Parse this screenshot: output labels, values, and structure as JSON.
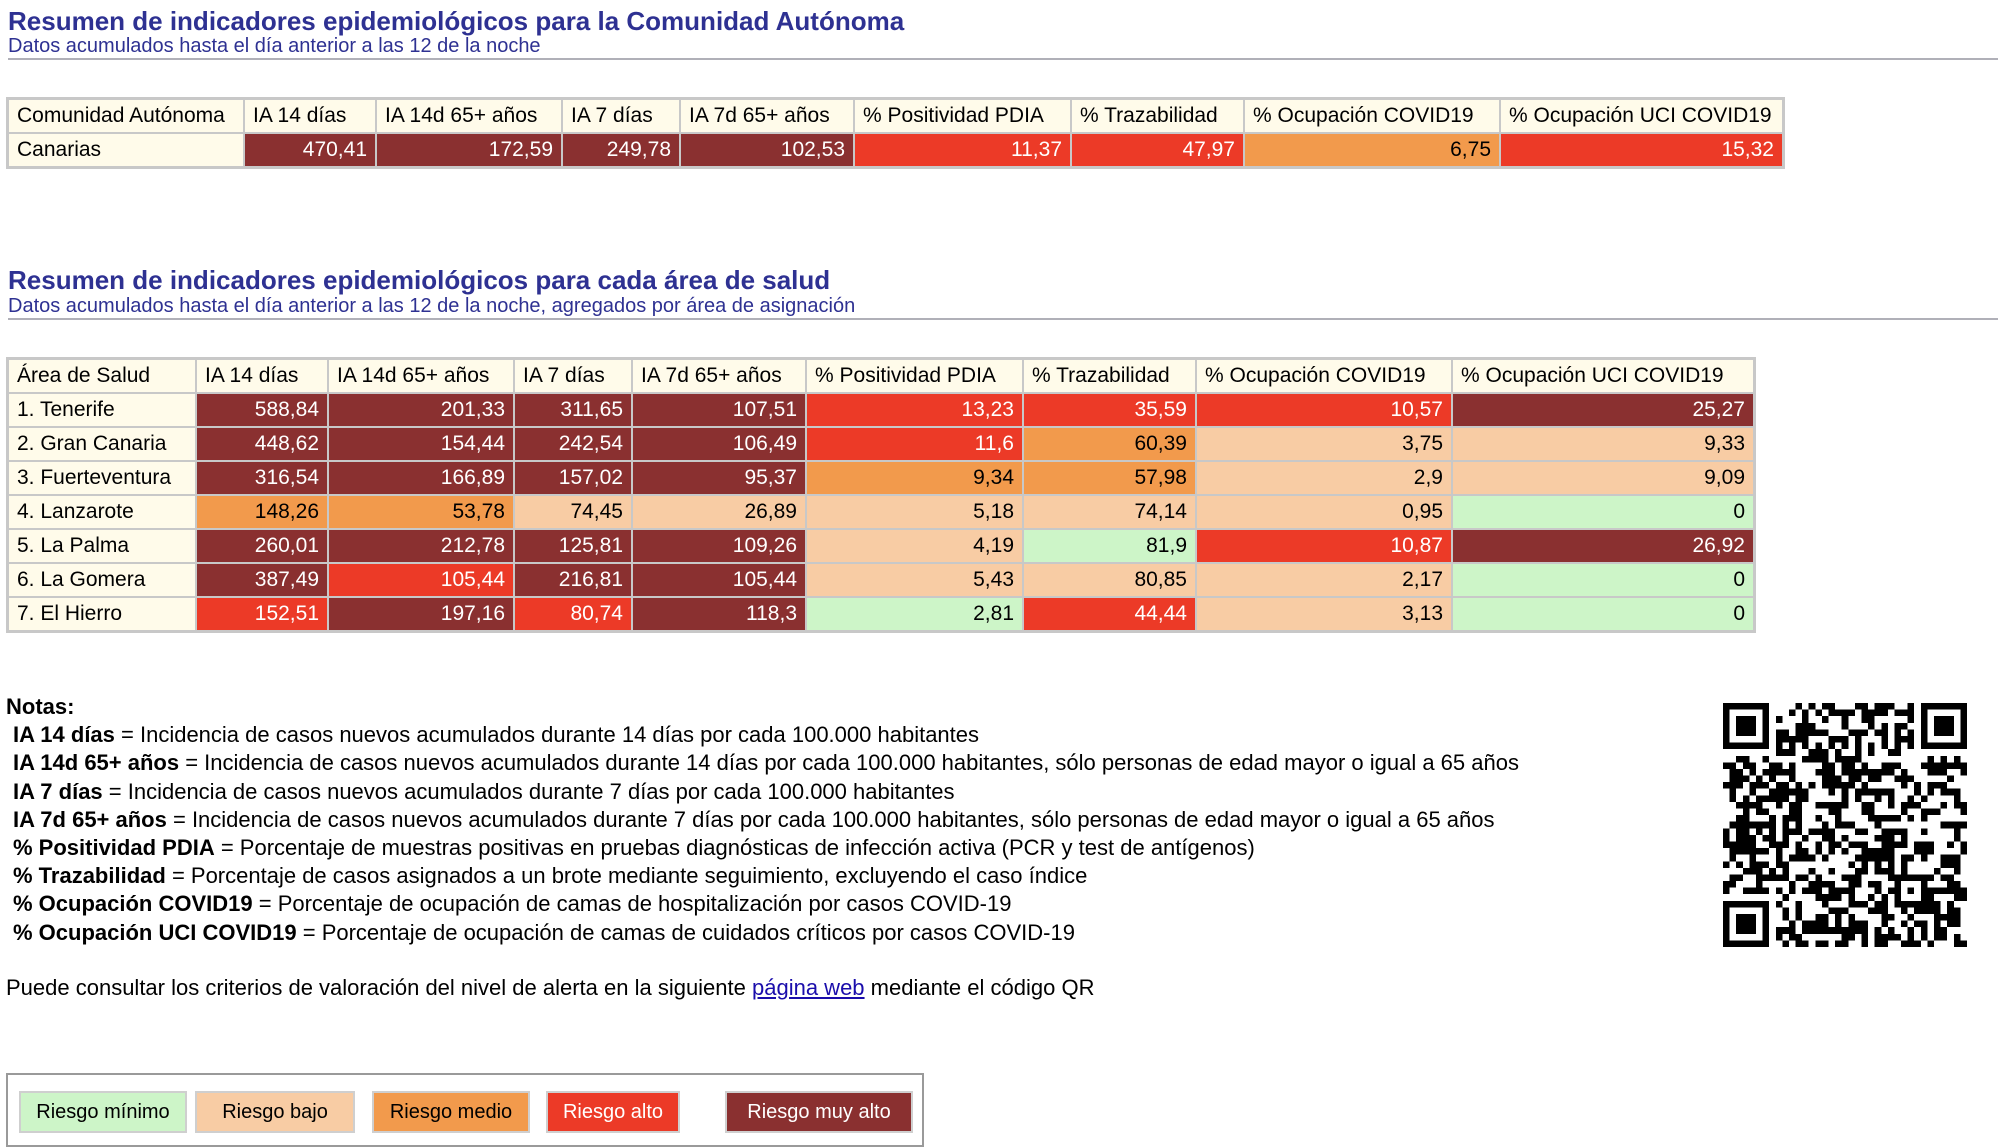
{
  "section1": {
    "title": "Resumen de indicadores epidemiológicos para la Comunidad Autónoma",
    "subtitle": "Datos acumulados hasta el día anterior a las 12 de la noche",
    "headers": [
      "Comunidad Autónoma",
      "IA 14 días",
      "IA 14d 65+ años",
      "IA 7 días",
      "IA 7d 65+ años",
      "% Positividad PDIA",
      "% Trazabilidad",
      "% Ocupación COVID19",
      "% Ocupación UCI COVID19"
    ],
    "rows": [
      {
        "name": "Canarias",
        "values": [
          "470,41",
          "172,59",
          "249,78",
          "102,53",
          "11,37",
          "47,97",
          "6,75",
          "15,32"
        ],
        "levels": [
          "muy",
          "muy",
          "muy",
          "muy",
          "alto",
          "alto",
          "med",
          "alto"
        ]
      }
    ]
  },
  "section2": {
    "title": "Resumen de indicadores epidemiológicos para cada área de salud",
    "subtitle": "Datos acumulados hasta el día anterior a las 12 de la noche, agregados por área de asignación",
    "headers": [
      "Área de Salud",
      "IA 14 días",
      "IA 14d 65+ años",
      "IA 7 días",
      "IA 7d 65+ años",
      "% Positividad PDIA",
      "% Trazabilidad",
      "% Ocupación COVID19",
      "% Ocupación UCI COVID19"
    ],
    "rows": [
      {
        "name": "1. Tenerife",
        "values": [
          "588,84",
          "201,33",
          "311,65",
          "107,51",
          "13,23",
          "35,59",
          "10,57",
          "25,27"
        ],
        "levels": [
          "muy",
          "muy",
          "muy",
          "muy",
          "alto",
          "alto",
          "alto",
          "muy"
        ]
      },
      {
        "name": "2. Gran Canaria",
        "values": [
          "448,62",
          "154,44",
          "242,54",
          "106,49",
          "11,6",
          "60,39",
          "3,75",
          "9,33"
        ],
        "levels": [
          "muy",
          "muy",
          "muy",
          "muy",
          "alto",
          "med",
          "bajo",
          "bajo"
        ]
      },
      {
        "name": "3. Fuerteventura",
        "values": [
          "316,54",
          "166,89",
          "157,02",
          "95,37",
          "9,34",
          "57,98",
          "2,9",
          "9,09"
        ],
        "levels": [
          "muy",
          "muy",
          "muy",
          "muy",
          "med",
          "med",
          "bajo",
          "bajo"
        ]
      },
      {
        "name": "4. Lanzarote",
        "values": [
          "148,26",
          "53,78",
          "74,45",
          "26,89",
          "5,18",
          "74,14",
          "0,95",
          "0"
        ],
        "levels": [
          "med",
          "med",
          "bajo",
          "bajo",
          "bajo",
          "bajo",
          "bajo",
          "min"
        ]
      },
      {
        "name": "5. La Palma",
        "values": [
          "260,01",
          "212,78",
          "125,81",
          "109,26",
          "4,19",
          "81,9",
          "10,87",
          "26,92"
        ],
        "levels": [
          "muy",
          "muy",
          "muy",
          "muy",
          "bajo",
          "min",
          "alto",
          "muy"
        ]
      },
      {
        "name": "6. La Gomera",
        "values": [
          "387,49",
          "105,44",
          "216,81",
          "105,44",
          "5,43",
          "80,85",
          "2,17",
          "0"
        ],
        "levels": [
          "muy",
          "alto",
          "muy",
          "muy",
          "bajo",
          "bajo",
          "bajo",
          "min"
        ]
      },
      {
        "name": "7. El Hierro",
        "values": [
          "152,51",
          "197,16",
          "80,74",
          "118,3",
          "2,81",
          "44,44",
          "3,13",
          "0"
        ],
        "levels": [
          "alto",
          "muy",
          "alto",
          "muy",
          "min",
          "alto",
          "bajo",
          "min"
        ]
      }
    ]
  },
  "notes": {
    "heading": "Notas:",
    "items": [
      {
        "term": "IA 14 días",
        "desc": " = Incidencia de casos nuevos acumulados durante 14 días por cada 100.000 habitantes"
      },
      {
        "term": "IA 14d 65+ años",
        "desc": " = Incidencia de casos nuevos acumulados durante 14 días por cada 100.000 habitantes, sólo personas de edad mayor o igual a 65 años"
      },
      {
        "term": "IA 7 días",
        "desc": " = Incidencia de casos nuevos acumulados durante 7 días por cada 100.000 habitantes"
      },
      {
        "term": "IA 7d 65+ años",
        "desc": " = Incidencia de casos nuevos acumulados durante 7 días por cada 100.000 habitantes, sólo personas de edad mayor o igual a 65 años"
      },
      {
        "term": "% Positividad PDIA",
        "desc": " = Porcentaje de muestras positivas en pruebas diagnósticas de infección activa (PCR y test de antígenos)"
      },
      {
        "term": "% Trazabilidad",
        "desc": " = Porcentaje de casos asignados a un brote mediante seguimiento, excluyendo el caso índice"
      },
      {
        "term": "% Ocupación COVID19",
        "desc": " = Porcentaje de ocupación de camas de hospitalización por casos COVID-19"
      },
      {
        "term": "% Ocupación UCI COVID19",
        "desc": " = Porcentaje de ocupación de camas de cuidados críticos por casos COVID-19"
      }
    ]
  },
  "footer": {
    "before": "Puede consultar los criterios de valoración del nivel de alerta en la siguiente ",
    "link": "página web",
    "after": " mediante el código QR"
  },
  "legend": [
    {
      "label": "Riesgo mínimo",
      "level": "min"
    },
    {
      "label": "Riesgo bajo",
      "level": "bajo"
    },
    {
      "label": "Riesgo medio",
      "level": "med"
    },
    {
      "label": "Riesgo alto",
      "level": "alto"
    },
    {
      "label": "Riesgo muy alto",
      "level": "muy"
    }
  ],
  "colors": {
    "min": "#cdf5c8",
    "bajo": "#f8cca4",
    "med": "#f29a4c",
    "alto": "#ec3a27",
    "muy": "#8a3030",
    "title": "#2e3192",
    "name_cell": "#fffbea"
  },
  "icons": {
    "qr": "qr-code-icon"
  }
}
